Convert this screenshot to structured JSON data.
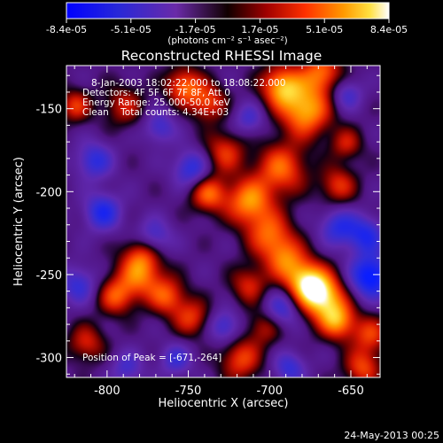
{
  "colorbar": {
    "tick_labels": [
      "-8.4e-05",
      "-5.1e-05",
      "-1.7e-05",
      "1.7e-05",
      "5.1e-05",
      "8.4e-05"
    ],
    "units_label": "(photons cm⁻² s⁻¹ asec⁻²)",
    "range": [
      -8.4e-05,
      8.4e-05
    ]
  },
  "chart_data": {
    "type": "heatmap",
    "title": "Reconstructed RHESSI Image",
    "xlabel": "Heliocentric X (arcsec)",
    "ylabel": "Heliocentric Y (arcsec)",
    "xlim": [
      -825,
      -632
    ],
    "ylim": [
      -312,
      -124
    ],
    "x_ticks": [
      -800,
      -750,
      -700,
      -650
    ],
    "y_ticks": [
      -300,
      -250,
      -200,
      -150
    ],
    "x_tick_labels": [
      "-800",
      "-750",
      "-700",
      "-650"
    ],
    "y_tick_labels": [
      "-300",
      "-250",
      "-200",
      "-150"
    ],
    "colormap": "rhessi-blue-purple-red-yellow-white",
    "info_lines": [
      "8-Jan-2003 18:02:22.000 to 18:08:22.000",
      "Detectors: 4F 5F 6F 7F 8F, Att 0",
      "Energy Range: 25.000-50.0 keV",
      "Clean    Total counts: 4.34E+03"
    ],
    "peak_label": "Position of Peak = [-671,-264]",
    "peak": [
      -671,
      -264
    ],
    "grid": false,
    "sources": [
      {
        "x": -668,
        "y": -263,
        "amp": 1.0,
        "s": 10
      },
      {
        "x": -678,
        "y": -254,
        "amp": 0.8,
        "s": 9
      },
      {
        "x": -658,
        "y": -278,
        "amp": 0.75,
        "s": 8
      },
      {
        "x": -690,
        "y": -241,
        "amp": 0.6,
        "s": 9
      },
      {
        "x": -700,
        "y": -226,
        "amp": 0.65,
        "s": 10
      },
      {
        "x": -713,
        "y": -206,
        "amp": 0.8,
        "s": 10
      },
      {
        "x": -693,
        "y": -186,
        "amp": 0.7,
        "s": 11
      },
      {
        "x": -678,
        "y": -151,
        "amp": 0.9,
        "s": 11
      },
      {
        "x": -693,
        "y": -136,
        "amp": 0.85,
        "s": 9
      },
      {
        "x": -668,
        "y": -128,
        "amp": 0.7,
        "s": 9
      },
      {
        "x": -728,
        "y": -176,
        "amp": 0.55,
        "s": 9
      },
      {
        "x": -738,
        "y": -201,
        "amp": 0.7,
        "s": 8
      },
      {
        "x": -753,
        "y": -136,
        "amp": 0.7,
        "s": 8
      },
      {
        "x": -738,
        "y": -146,
        "amp": 0.6,
        "s": 8
      },
      {
        "x": -790,
        "y": -148,
        "amp": 0.45,
        "s": 9
      },
      {
        "x": -820,
        "y": -148,
        "amp": 0.55,
        "s": 7
      },
      {
        "x": -780,
        "y": -250,
        "amp": 0.7,
        "s": 10
      },
      {
        "x": -795,
        "y": -263,
        "amp": 0.6,
        "s": 8
      },
      {
        "x": -763,
        "y": -263,
        "amp": 0.6,
        "s": 8
      },
      {
        "x": -748,
        "y": -276,
        "amp": 0.55,
        "s": 8
      },
      {
        "x": -778,
        "y": -236,
        "amp": 0.5,
        "s": 8
      },
      {
        "x": -813,
        "y": -291,
        "amp": 0.5,
        "s": 8
      },
      {
        "x": -713,
        "y": -256,
        "amp": 0.5,
        "s": 8
      },
      {
        "x": -703,
        "y": -281,
        "amp": 0.45,
        "s": 8
      },
      {
        "x": -718,
        "y": -301,
        "amp": 0.6,
        "s": 9
      },
      {
        "x": -638,
        "y": -286,
        "amp": 0.55,
        "s": 8
      },
      {
        "x": -643,
        "y": -306,
        "amp": 0.6,
        "s": 8
      },
      {
        "x": -658,
        "y": -196,
        "amp": 0.55,
        "s": 8
      },
      {
        "x": -653,
        "y": -171,
        "amp": 0.45,
        "s": 7
      },
      {
        "x": -803,
        "y": -212,
        "amp": -0.65,
        "s": 8
      },
      {
        "x": -772,
        "y": -228,
        "amp": -0.55,
        "s": 8
      },
      {
        "x": -748,
        "y": -186,
        "amp": -0.6,
        "s": 8
      },
      {
        "x": -808,
        "y": -181,
        "amp": -0.55,
        "s": 8
      },
      {
        "x": -638,
        "y": -251,
        "amp": -0.9,
        "s": 9
      },
      {
        "x": -641,
        "y": -226,
        "amp": -0.6,
        "s": 8
      },
      {
        "x": -658,
        "y": -221,
        "amp": -0.55,
        "s": 8
      },
      {
        "x": -693,
        "y": -271,
        "amp": -0.55,
        "s": 8
      },
      {
        "x": -728,
        "y": -281,
        "amp": -0.5,
        "s": 7
      },
      {
        "x": -818,
        "y": -256,
        "amp": -0.5,
        "s": 8
      },
      {
        "x": -758,
        "y": -301,
        "amp": -0.45,
        "s": 7
      },
      {
        "x": -788,
        "y": -306,
        "amp": -0.4,
        "s": 7
      },
      {
        "x": -768,
        "y": -161,
        "amp": -0.45,
        "s": 7
      },
      {
        "x": -713,
        "y": -156,
        "amp": -0.4,
        "s": 7
      },
      {
        "x": -688,
        "y": -306,
        "amp": -0.5,
        "s": 7
      },
      {
        "x": -653,
        "y": -141,
        "amp": -0.45,
        "s": 7
      }
    ]
  },
  "footer": {
    "timestamp": "24-May-2013 00:25"
  }
}
